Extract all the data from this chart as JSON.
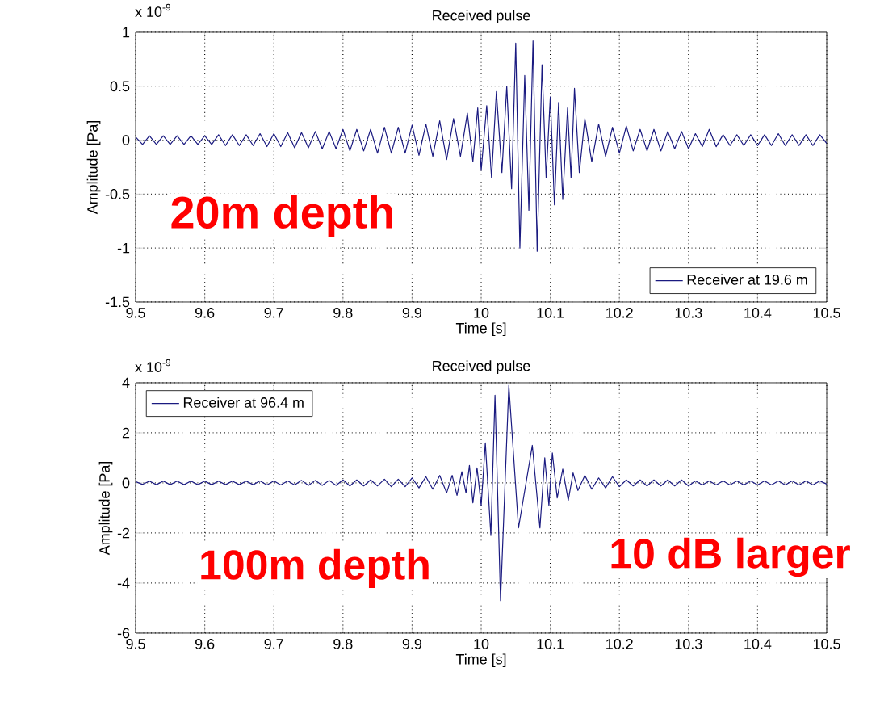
{
  "chart_data": [
    {
      "type": "line",
      "title": "Received pulse",
      "xlabel": "Time [s]",
      "ylabel": "Amplitude [Pa]",
      "annotations": [
        "x 10$^{-9}$",
        "20m depth"
      ],
      "xlim": [
        9.5,
        10.5
      ],
      "xticks": [
        9.5,
        9.6,
        9.7,
        9.8,
        9.9,
        10,
        10.1,
        10.2,
        10.3,
        10.4,
        10.5
      ],
      "ylim": [
        -1.5,
        1
      ],
      "yticks": [
        -1.5,
        -1,
        -0.5,
        0,
        0.5,
        1
      ],
      "grid": true,
      "legend": "bottom right",
      "series": [
        {
          "name": "Receiver at 19.6 m",
          "color": "#1a1a80",
          "x": [
            9.5,
            9.51,
            9.52,
            9.53,
            9.54,
            9.55,
            9.56,
            9.57,
            9.58,
            9.59,
            9.6,
            9.61,
            9.62,
            9.63,
            9.64,
            9.65,
            9.66,
            9.67,
            9.68,
            9.69,
            9.7,
            9.71,
            9.72,
            9.73,
            9.74,
            9.75,
            9.76,
            9.77,
            9.78,
            9.79,
            9.8,
            9.81,
            9.82,
            9.83,
            9.84,
            9.85,
            9.86,
            9.87,
            9.88,
            9.89,
            9.9,
            9.91,
            9.92,
            9.93,
            9.94,
            9.95,
            9.96,
            9.97,
            9.98,
            9.988,
            9.995,
            10.0,
            10.008,
            10.015,
            10.022,
            10.03,
            10.037,
            10.044,
            10.05,
            10.056,
            10.063,
            10.069,
            10.075,
            10.081,
            10.088,
            10.094,
            10.1,
            10.106,
            10.112,
            10.118,
            10.125,
            10.13,
            10.135,
            10.142,
            10.15,
            10.16,
            10.17,
            10.18,
            10.19,
            10.2,
            10.21,
            10.22,
            10.23,
            10.24,
            10.25,
            10.26,
            10.27,
            10.28,
            10.29,
            10.3,
            10.31,
            10.32,
            10.33,
            10.34,
            10.35,
            10.36,
            10.37,
            10.38,
            10.39,
            10.4,
            10.41,
            10.42,
            10.43,
            10.44,
            10.45,
            10.46,
            10.47,
            10.48,
            10.49,
            10.5
          ],
          "values": [
            0.03,
            -0.04,
            0.04,
            -0.04,
            0.04,
            -0.04,
            0.04,
            -0.04,
            0.04,
            -0.04,
            0.04,
            -0.04,
            0.05,
            -0.05,
            0.05,
            -0.05,
            0.05,
            -0.05,
            0.06,
            -0.06,
            0.06,
            -0.06,
            0.07,
            -0.07,
            0.07,
            -0.07,
            0.08,
            -0.08,
            0.08,
            -0.08,
            0.1,
            -0.1,
            0.1,
            -0.1,
            0.1,
            -0.12,
            0.12,
            -0.12,
            0.12,
            -0.12,
            0.14,
            -0.14,
            0.15,
            -0.15,
            0.18,
            -0.18,
            0.2,
            -0.15,
            0.25,
            -0.2,
            0.3,
            -0.28,
            0.32,
            -0.35,
            0.45,
            -0.3,
            0.5,
            -0.45,
            0.9,
            -1.0,
            0.6,
            -0.65,
            0.92,
            -1.03,
            0.7,
            -0.35,
            0.4,
            -0.6,
            0.35,
            -0.55,
            0.3,
            -0.35,
            0.48,
            -0.3,
            0.2,
            -0.2,
            0.15,
            -0.15,
            0.12,
            -0.12,
            0.13,
            -0.1,
            0.1,
            -0.1,
            0.1,
            -0.1,
            0.08,
            -0.08,
            0.08,
            -0.08,
            0.06,
            -0.06,
            0.1,
            -0.06,
            0.05,
            -0.05,
            0.05,
            -0.05,
            0.05,
            -0.05,
            0.05,
            -0.05,
            0.06,
            -0.05,
            0.05,
            -0.05,
            0.05,
            -0.05,
            0.05,
            -0.03
          ]
        }
      ]
    },
    {
      "type": "line",
      "title": "Received pulse",
      "xlabel": "Time [s]",
      "ylabel": "Amplitude [Pa]",
      "annotations": [
        "x 10$^{-9}$",
        "100m depth",
        "10 dB larger"
      ],
      "xlim": [
        9.5,
        10.5
      ],
      "xticks": [
        9.5,
        9.6,
        9.7,
        9.8,
        9.9,
        10,
        10.1,
        10.2,
        10.3,
        10.4,
        10.5
      ],
      "ylim": [
        -6,
        4
      ],
      "yticks": [
        -6,
        -4,
        -2,
        0,
        2,
        4
      ],
      "grid": true,
      "legend": "top left",
      "series": [
        {
          "name": "Receiver at 96.4 m",
          "color": "#1a1a80",
          "x": [
            9.5,
            9.51,
            9.52,
            9.53,
            9.54,
            9.55,
            9.56,
            9.57,
            9.58,
            9.59,
            9.6,
            9.61,
            9.62,
            9.63,
            9.64,
            9.65,
            9.66,
            9.67,
            9.68,
            9.69,
            9.7,
            9.71,
            9.72,
            9.73,
            9.74,
            9.75,
            9.76,
            9.77,
            9.78,
            9.79,
            9.8,
            9.81,
            9.82,
            9.83,
            9.84,
            9.85,
            9.86,
            9.87,
            9.88,
            9.89,
            9.9,
            9.91,
            9.92,
            9.93,
            9.94,
            9.95,
            9.958,
            9.965,
            9.972,
            9.978,
            9.983,
            9.988,
            9.994,
            10.0,
            10.006,
            10.014,
            10.02,
            10.028,
            10.04,
            10.054,
            10.074,
            10.085,
            10.092,
            10.098,
            10.103,
            10.11,
            10.118,
            10.126,
            10.133,
            10.14,
            10.15,
            10.16,
            10.17,
            10.18,
            10.19,
            10.2,
            10.21,
            10.22,
            10.23,
            10.24,
            10.25,
            10.26,
            10.27,
            10.28,
            10.29,
            10.3,
            10.31,
            10.32,
            10.33,
            10.34,
            10.35,
            10.36,
            10.37,
            10.38,
            10.39,
            10.4,
            10.41,
            10.42,
            10.43,
            10.44,
            10.45,
            10.46,
            10.47,
            10.48,
            10.49,
            10.5
          ],
          "values": [
            0.05,
            -0.06,
            0.07,
            -0.07,
            0.07,
            -0.07,
            0.07,
            -0.07,
            0.07,
            -0.07,
            0.07,
            -0.07,
            0.07,
            -0.07,
            0.07,
            -0.07,
            0.07,
            -0.07,
            0.08,
            -0.08,
            0.08,
            -0.08,
            0.08,
            -0.08,
            0.1,
            -0.1,
            0.1,
            -0.1,
            0.1,
            -0.1,
            0.12,
            -0.12,
            0.12,
            -0.12,
            0.12,
            -0.12,
            0.15,
            -0.15,
            0.15,
            -0.15,
            0.2,
            -0.2,
            0.25,
            -0.25,
            0.3,
            -0.4,
            0.3,
            -0.5,
            0.45,
            -0.4,
            0.7,
            -0.8,
            0.6,
            -0.9,
            1.6,
            -2.1,
            3.5,
            -4.7,
            3.9,
            -1.8,
            1.5,
            -1.8,
            1.0,
            -0.9,
            1.2,
            -0.6,
            0.55,
            -0.7,
            0.4,
            -0.3,
            0.3,
            -0.25,
            0.2,
            -0.2,
            0.25,
            -0.15,
            0.12,
            -0.12,
            0.12,
            -0.12,
            0.12,
            -0.12,
            0.12,
            -0.12,
            0.12,
            -0.12,
            0.08,
            -0.08,
            0.08,
            -0.08,
            0.08,
            -0.08,
            0.08,
            -0.08,
            0.08,
            -0.08,
            0.08,
            -0.08,
            0.08,
            -0.08,
            0.08,
            -0.08,
            0.08,
            -0.08,
            0.08,
            -0.05
          ]
        }
      ]
    }
  ]
}
